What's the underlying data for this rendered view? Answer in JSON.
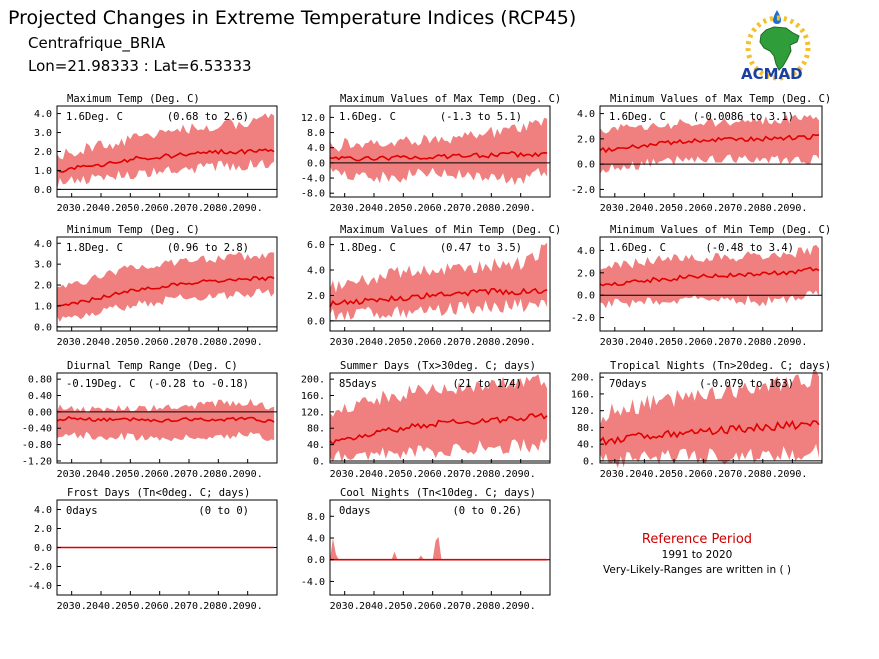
{
  "header": {
    "title": "Projected Changes in Extreme Temperature Indices (RCP45)",
    "region": "Centrafrique_BRIA",
    "coords": "Lon=21.98333 : Lat=6.53333"
  },
  "logo": {
    "text": "ACMAD"
  },
  "reference": {
    "title": "Reference Period",
    "years": "1991 to 2020",
    "note": "Very-Likely-Ranges are written in ( )"
  },
  "colors": {
    "band": "#f08080",
    "line": "#e00000",
    "zero": "#000000",
    "accent": "#cc0000"
  },
  "chart_data": [
    {
      "type": "area",
      "title": "Maximum Temp (Deg. C)",
      "value_text": "1.6Deg. C",
      "range_text": "(0.68 to 2.6)",
      "xlim": [
        2025,
        2100
      ],
      "x_ticks": [
        "2030.",
        "2040.",
        "2050.",
        "2060.",
        "2070.",
        "2080.",
        "2090."
      ],
      "ylim": [
        -0.4,
        4.4
      ],
      "y_ticks": [
        "0.0",
        "1.0",
        "2.0",
        "3.0",
        "4.0"
      ],
      "series": [
        {
          "role": "median",
          "x": [
            2025,
            2030,
            2040,
            2050,
            2060,
            2070,
            2080,
            2090,
            2099
          ],
          "y": [
            0.9,
            1.1,
            1.3,
            1.6,
            1.7,
            1.9,
            2.0,
            2.0,
            2.1
          ]
        },
        {
          "role": "range",
          "x": [
            2025,
            2030,
            2040,
            2050,
            2060,
            2070,
            2080,
            2090,
            2099
          ],
          "low": [
            0.3,
            0.4,
            0.6,
            0.8,
            0.9,
            1.1,
            1.2,
            1.3,
            1.4
          ],
          "high": [
            1.7,
            2.0,
            2.3,
            2.6,
            3.0,
            3.2,
            3.4,
            3.5,
            3.9
          ]
        }
      ]
    },
    {
      "type": "area",
      "title": "Maximum Values of Max Temp (Deg. C)",
      "value_text": "1.6Deg. C",
      "range_text": "(-1.3 to 5.1)",
      "xlim": [
        2025,
        2100
      ],
      "x_ticks": [
        "2030.",
        "2040.",
        "2050.",
        "2060.",
        "2070.",
        "2080.",
        "2090."
      ],
      "ylim": [
        -9.0,
        15.0
      ],
      "y_ticks": [
        "-8.0",
        "-4.0",
        "0.0",
        "4.0",
        "8.0",
        "12.0"
      ],
      "series": [
        {
          "role": "median",
          "x": [
            2025,
            2030,
            2040,
            2050,
            2060,
            2070,
            2080,
            2090,
            2099
          ],
          "y": [
            1.0,
            1.2,
            1.0,
            1.3,
            1.6,
            1.9,
            2.1,
            2.3,
            2.4
          ]
        },
        {
          "role": "range",
          "x": [
            2025,
            2030,
            2040,
            2050,
            2060,
            2070,
            2080,
            2090,
            2099
          ],
          "low": [
            -2.5,
            -3.0,
            -4.0,
            -3.5,
            -2.5,
            -3.0,
            -4.0,
            -5.0,
            -2.0
          ],
          "high": [
            4.0,
            5.0,
            5.5,
            6.0,
            6.0,
            7.0,
            8.0,
            9.0,
            11.0
          ]
        }
      ]
    },
    {
      "type": "area",
      "title": "Minimum Values of Max Temp (Deg. C)",
      "value_text": "1.6Deg. C",
      "range_text": "(-0.0086 to 3.1)",
      "xlim": [
        2025,
        2100
      ],
      "x_ticks": [
        "2030.",
        "2040.",
        "2050.",
        "2060.",
        "2070.",
        "2080.",
        "2090."
      ],
      "ylim": [
        -2.6,
        4.6
      ],
      "y_ticks": [
        "-2.0",
        "0.0",
        "2.0",
        "4.0"
      ],
      "series": [
        {
          "role": "median",
          "x": [
            2025,
            2030,
            2040,
            2050,
            2060,
            2070,
            2080,
            2090,
            2099
          ],
          "y": [
            1.1,
            1.2,
            1.5,
            1.7,
            1.9,
            2.0,
            2.0,
            2.1,
            2.2
          ]
        },
        {
          "role": "range",
          "x": [
            2025,
            2030,
            2040,
            2050,
            2060,
            2070,
            2080,
            2090,
            2099
          ],
          "low": [
            -0.5,
            -0.3,
            0.0,
            0.3,
            0.4,
            0.5,
            0.4,
            0.3,
            0.4
          ],
          "high": [
            2.5,
            2.8,
            3.0,
            3.2,
            3.3,
            3.4,
            3.5,
            3.6,
            3.8
          ]
        }
      ]
    },
    {
      "type": "area",
      "title": "Minimum Temp (Deg. C)",
      "value_text": "1.8Deg. C",
      "range_text": "(0.96 to 2.8)",
      "xlim": [
        2025,
        2100
      ],
      "x_ticks": [
        "2030.",
        "2040.",
        "2050.",
        "2060.",
        "2070.",
        "2080.",
        "2090."
      ],
      "ylim": [
        -0.2,
        4.3
      ],
      "y_ticks": [
        "0.0",
        "1.0",
        "2.0",
        "3.0",
        "4.0"
      ],
      "series": [
        {
          "role": "median",
          "x": [
            2025,
            2030,
            2040,
            2050,
            2060,
            2070,
            2080,
            2090,
            2099
          ],
          "y": [
            1.0,
            1.1,
            1.4,
            1.7,
            1.9,
            2.1,
            2.2,
            2.3,
            2.3
          ]
        },
        {
          "role": "range",
          "x": [
            2025,
            2030,
            2040,
            2050,
            2060,
            2070,
            2080,
            2090,
            2099
          ],
          "low": [
            0.4,
            0.5,
            0.8,
            1.0,
            1.2,
            1.4,
            1.5,
            1.6,
            1.6
          ],
          "high": [
            1.8,
            2.0,
            2.4,
            2.8,
            3.0,
            3.2,
            3.3,
            3.4,
            3.5
          ]
        }
      ]
    },
    {
      "type": "area",
      "title": "Maximum Values of Min Temp (Deg. C)",
      "value_text": "1.8Deg. C",
      "range_text": "(0.47 to 3.5)",
      "xlim": [
        2025,
        2100
      ],
      "x_ticks": [
        "2030.",
        "2040.",
        "2050.",
        "2060.",
        "2070.",
        "2080.",
        "2090."
      ],
      "ylim": [
        -0.8,
        6.6
      ],
      "y_ticks": [
        "0.0",
        "2.0",
        "4.0",
        "6.0"
      ],
      "series": [
        {
          "role": "median",
          "x": [
            2025,
            2030,
            2040,
            2050,
            2060,
            2070,
            2080,
            2090,
            2099
          ],
          "y": [
            1.3,
            1.4,
            1.6,
            1.8,
            2.0,
            2.2,
            2.3,
            2.3,
            2.4
          ]
        },
        {
          "role": "range",
          "x": [
            2025,
            2030,
            2040,
            2050,
            2060,
            2070,
            2080,
            2090,
            2099
          ],
          "low": [
            0.4,
            0.5,
            0.6,
            0.7,
            0.8,
            1.0,
            1.1,
            1.2,
            1.3
          ],
          "high": [
            2.6,
            3.0,
            3.4,
            3.8,
            4.0,
            4.2,
            4.4,
            4.5,
            5.8
          ]
        }
      ]
    },
    {
      "type": "area",
      "title": "Minimum Values of Min Temp (Deg. C)",
      "value_text": "1.6Deg. C",
      "range_text": "(-0.48 to 3.4)",
      "xlim": [
        2025,
        2100
      ],
      "x_ticks": [
        "2030.",
        "2040.",
        "2050.",
        "2060.",
        "2070.",
        "2080.",
        "2090."
      ],
      "ylim": [
        -3.2,
        5.2
      ],
      "y_ticks": [
        "-2.0",
        "0.0",
        "2.0",
        "4.0"
      ],
      "series": [
        {
          "role": "median",
          "x": [
            2025,
            2030,
            2040,
            2050,
            2060,
            2070,
            2080,
            2090,
            2099
          ],
          "y": [
            0.8,
            1.0,
            1.3,
            1.5,
            1.7,
            1.8,
            1.9,
            2.0,
            2.4
          ]
        },
        {
          "role": "range",
          "x": [
            2025,
            2030,
            2040,
            2050,
            2060,
            2070,
            2080,
            2090,
            2099
          ],
          "low": [
            -1.0,
            -0.8,
            -0.5,
            -0.4,
            -0.5,
            -0.3,
            -0.6,
            -0.2,
            0.2
          ],
          "high": [
            2.3,
            2.7,
            3.0,
            3.2,
            3.3,
            3.4,
            3.5,
            3.7,
            4.1
          ]
        }
      ]
    },
    {
      "type": "area",
      "title": "Diurnal Temp Range (Deg. C)",
      "value_text": "-0.19Deg. C",
      "range_text": "(-0.28 to -0.18)",
      "xlim": [
        2025,
        2100
      ],
      "x_ticks": [
        "2030.",
        "2040.",
        "2050.",
        "2060.",
        "2070.",
        "2080.",
        "2090."
      ],
      "ylim": [
        -1.25,
        0.95
      ],
      "y_ticks": [
        "-1.20",
        "-0.80",
        "-0.40",
        "0.00",
        "0.40",
        "0.80"
      ],
      "series": [
        {
          "role": "median",
          "x": [
            2025,
            2030,
            2040,
            2050,
            2060,
            2070,
            2080,
            2090,
            2099
          ],
          "y": [
            -0.2,
            -0.15,
            -0.2,
            -0.18,
            -0.22,
            -0.17,
            -0.2,
            -0.15,
            -0.25
          ]
        },
        {
          "role": "range",
          "x": [
            2025,
            2030,
            2040,
            2050,
            2060,
            2070,
            2080,
            2090,
            2099
          ],
          "low": [
            -0.6,
            -0.55,
            -0.6,
            -0.6,
            -0.65,
            -0.6,
            -0.6,
            -0.55,
            -0.65
          ],
          "high": [
            0.1,
            0.05,
            0.05,
            0.1,
            0.08,
            0.15,
            0.2,
            0.25,
            0.1
          ]
        }
      ]
    },
    {
      "type": "area",
      "title": "Summer Days (Tx>30deg. C; days)",
      "value_text": "85days",
      "range_text": "(21 to 174)",
      "xlim": [
        2025,
        2100
      ],
      "x_ticks": [
        "2030.",
        "2040.",
        "2050.",
        "2060.",
        "2070.",
        "2080.",
        "2090."
      ],
      "ylim": [
        -5,
        215
      ],
      "y_ticks": [
        "0.",
        "40.",
        "80.",
        "120.",
        "160.",
        "200."
      ],
      "series": [
        {
          "role": "median",
          "x": [
            2025,
            2030,
            2040,
            2050,
            2060,
            2070,
            2080,
            2090,
            2099
          ],
          "y": [
            45,
            55,
            70,
            80,
            90,
            95,
            100,
            105,
            110
          ]
        },
        {
          "role": "range",
          "x": [
            2025,
            2030,
            2040,
            2050,
            2060,
            2070,
            2080,
            2090,
            2099
          ],
          "low": [
            5,
            10,
            15,
            20,
            25,
            30,
            35,
            35,
            40
          ],
          "high": [
            100,
            130,
            150,
            165,
            175,
            180,
            185,
            190,
            195
          ]
        }
      ]
    },
    {
      "type": "area",
      "title": "Tropical Nights (Tn>20deg. C; days)",
      "value_text": "70days",
      "range_text": "(-0.079 to 163)",
      "xlim": [
        2025,
        2100
      ],
      "x_ticks": [
        "2030.",
        "2040.",
        "2050.",
        "2060.",
        "2070.",
        "2080.",
        "2090."
      ],
      "ylim": [
        -5,
        210
      ],
      "y_ticks": [
        "0.",
        "40.",
        "80.",
        "120.",
        "160.",
        "200."
      ],
      "series": [
        {
          "role": "median",
          "x": [
            2025,
            2030,
            2040,
            2050,
            2060,
            2070,
            2080,
            2090,
            2099
          ],
          "y": [
            45,
            50,
            60,
            65,
            70,
            75,
            80,
            85,
            90
          ]
        },
        {
          "role": "range",
          "x": [
            2025,
            2030,
            2040,
            2050,
            2060,
            2070,
            2080,
            2090,
            2099
          ],
          "low": [
            0,
            0,
            5,
            8,
            10,
            12,
            15,
            18,
            20
          ],
          "high": [
            100,
            120,
            135,
            150,
            160,
            170,
            180,
            190,
            200
          ]
        }
      ]
    },
    {
      "type": "area",
      "title": "Frost Days (Tn<0deg. C; days)",
      "value_text": "0days",
      "range_text": "(0 to 0)",
      "xlim": [
        2025,
        2100
      ],
      "x_ticks": [
        "2030.",
        "2040.",
        "2050.",
        "2060.",
        "2070.",
        "2080.",
        "2090."
      ],
      "ylim": [
        -5.0,
        5.0
      ],
      "y_ticks": [
        "-4.0",
        "-2.0",
        "0.0",
        "2.0",
        "4.0"
      ],
      "series": [
        {
          "role": "median",
          "x": [
            2025,
            2099
          ],
          "y": [
            0,
            0
          ]
        },
        {
          "role": "range",
          "x": [
            2025,
            2099
          ],
          "low": [
            0,
            0
          ],
          "high": [
            0,
            0
          ]
        }
      ]
    },
    {
      "type": "area",
      "title": "Cool Nights (Tn<10deg. C; days)",
      "value_text": "0days",
      "range_text": "(0 to 0.26)",
      "xlim": [
        2025,
        2100
      ],
      "x_ticks": [
        "2030.",
        "2040.",
        "2050.",
        "2060.",
        "2070.",
        "2080.",
        "2090."
      ],
      "ylim": [
        -6.5,
        11.0
      ],
      "y_ticks": [
        "-4.0",
        "0.0",
        "4.0",
        "8.0"
      ],
      "series": [
        {
          "role": "median",
          "x": [
            2025,
            2099
          ],
          "y": [
            0,
            0
          ]
        },
        {
          "role": "range",
          "x": [
            2025,
            2026,
            2027,
            2028,
            2029,
            2046,
            2047,
            2048,
            2055,
            2056,
            2057,
            2060,
            2061,
            2062,
            2063,
            2099
          ],
          "low": [
            0,
            0,
            0,
            0,
            0,
            0,
            0,
            0,
            0,
            0,
            0,
            0,
            0,
            0,
            0,
            0
          ],
          "high": [
            0,
            4.0,
            1.0,
            0,
            0,
            0,
            1.5,
            0,
            0,
            0.8,
            0,
            0,
            3.5,
            4.2,
            0,
            0
          ]
        }
      ]
    }
  ]
}
